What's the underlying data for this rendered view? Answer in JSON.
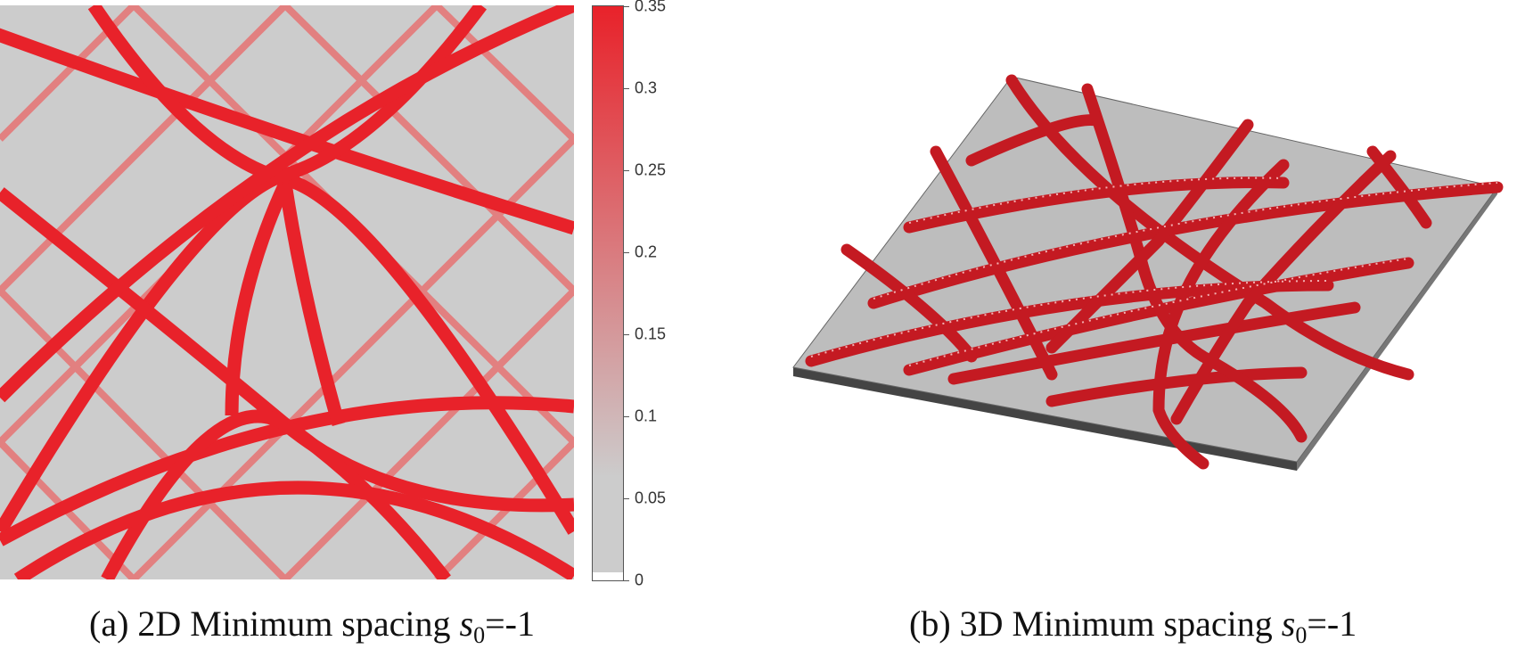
{
  "colorbar": {
    "ticks": [
      "0.35",
      "0.3",
      "0.25",
      "0.2",
      "0.15",
      "0.1",
      "0.05",
      "0"
    ],
    "min_color": "#cccccc",
    "max_color": "#e8222a"
  },
  "captions": {
    "left": {
      "prefix": "(a)  2D Minimum spacing ",
      "symbol": "s",
      "subscript": "0",
      "suffix": "=-1"
    },
    "right": {
      "prefix": "(b)  3D Minimum spacing ",
      "symbol": "s",
      "subscript": "0",
      "suffix": "=-1"
    }
  },
  "colors": {
    "background_gray": "#cccccc",
    "bar_red": "#e8222a",
    "plate_gray": "#bdbdbd",
    "tube_red": "#c41a22"
  }
}
